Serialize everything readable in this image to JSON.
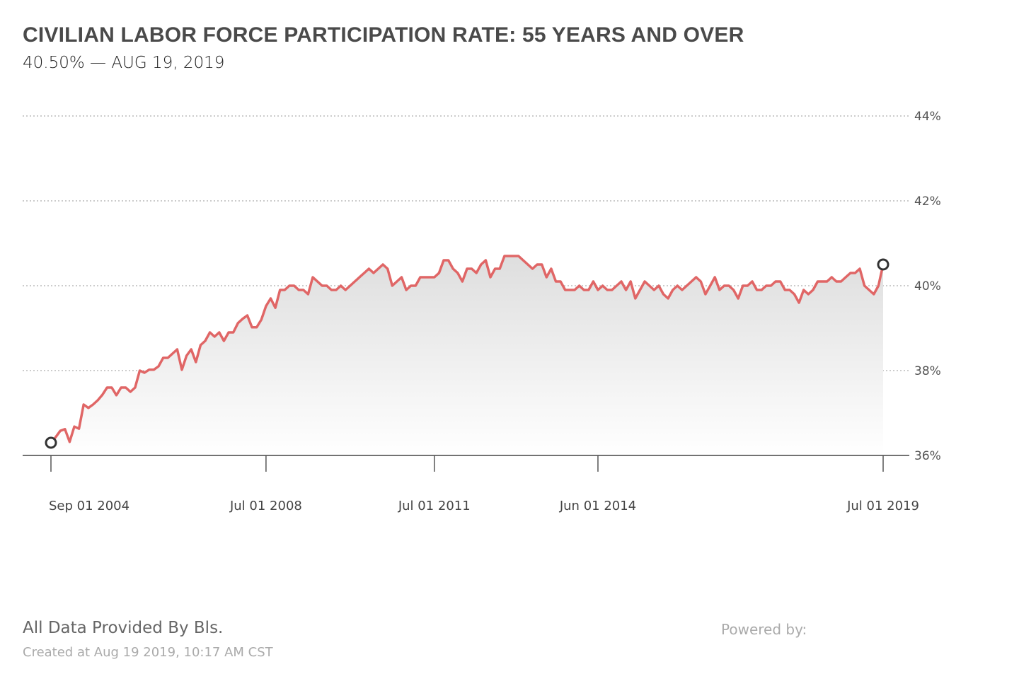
{
  "header": {
    "title": "CIVILIAN LABOR FORCE PARTICIPATION RATE: 55 YEARS AND OVER",
    "subtitle": "40.50% — AUG 19, 2019"
  },
  "footer": {
    "source": "All Data Provided By Bls.",
    "created": "Created at Aug 19 2019, 10:17 AM CST",
    "powered_by": "Powered by:"
  },
  "colors": {
    "line": "#e06666",
    "fill_top": "#dedede",
    "marker": "#333333",
    "grid": "#bbbbbb"
  },
  "chart_data": {
    "type": "area",
    "title": "CIVILIAN LABOR FORCE PARTICIPATION RATE: 55 YEARS AND OVER",
    "xlabel": "",
    "ylabel": "",
    "x_start": "2004-09",
    "x_step": "1 month",
    "ylim": [
      36,
      44
    ],
    "yticks": [
      {
        "value": 44,
        "label": "44%"
      },
      {
        "value": 42,
        "label": "42%"
      },
      {
        "value": 40,
        "label": "40%"
      },
      {
        "value": 38,
        "label": "38%"
      },
      {
        "value": 36,
        "label": "36%"
      }
    ],
    "xticks": [
      {
        "index": 0,
        "label": "Sep 01 2004"
      },
      {
        "index": 46,
        "label": "Jul 01 2008"
      },
      {
        "index": 82,
        "label": "Jul 01 2011"
      },
      {
        "index": 117,
        "label": "Jun 01 2014"
      },
      {
        "index": 178,
        "label": "Jul 01 2019"
      }
    ],
    "grid": true,
    "highlighted_points": [
      0,
      178
    ],
    "values": [
      36.3,
      36.43,
      36.58,
      36.62,
      36.32,
      36.68,
      36.63,
      37.2,
      37.12,
      37.2,
      37.3,
      37.43,
      37.6,
      37.6,
      37.42,
      37.6,
      37.6,
      37.5,
      37.6,
      38.0,
      37.95,
      38.02,
      38.02,
      38.1,
      38.3,
      38.3,
      38.4,
      38.5,
      38.02,
      38.35,
      38.5,
      38.2,
      38.6,
      38.7,
      38.9,
      38.8,
      38.9,
      38.7,
      38.9,
      38.9,
      39.12,
      39.22,
      39.3,
      39.02,
      39.02,
      39.2,
      39.52,
      39.7,
      39.48,
      39.9,
      39.9,
      40.0,
      40.0,
      39.9,
      39.9,
      39.8,
      40.2,
      40.1,
      40.0,
      40.0,
      39.9,
      39.9,
      40.0,
      39.9,
      40.0,
      40.1,
      40.2,
      40.3,
      40.4,
      40.3,
      40.4,
      40.5,
      40.4,
      40.0,
      40.1,
      40.2,
      39.9,
      40.0,
      40.0,
      40.2,
      40.2,
      40.2,
      40.2,
      40.3,
      40.6,
      40.6,
      40.4,
      40.3,
      40.1,
      40.4,
      40.4,
      40.3,
      40.5,
      40.6,
      40.2,
      40.4,
      40.4,
      40.7,
      40.7,
      40.7,
      40.7,
      40.6,
      40.5,
      40.4,
      40.5,
      40.5,
      40.2,
      40.4,
      40.1,
      40.1,
      39.9,
      39.9,
      39.9,
      40.0,
      39.9,
      39.9,
      40.1,
      39.9,
      40.0,
      39.9,
      39.9,
      40.0,
      40.1,
      39.9,
      40.1,
      39.7,
      39.9,
      40.1,
      40.0,
      39.9,
      40.0,
      39.8,
      39.7,
      39.9,
      40.0,
      39.9,
      40.0,
      40.1,
      40.2,
      40.1,
      39.8,
      40.0,
      40.2,
      39.9,
      40.0,
      40.0,
      39.9,
      39.7,
      40.0,
      40.0,
      40.1,
      39.9,
      39.9,
      40.0,
      40.0,
      40.1,
      40.1,
      39.9,
      39.9,
      39.8,
      39.6,
      39.9,
      39.8,
      39.9,
      40.1,
      40.1,
      40.1,
      40.2,
      40.1,
      40.1,
      40.2,
      40.3,
      40.3,
      40.4,
      40.0,
      39.9,
      39.8,
      40.0,
      40.5
    ]
  }
}
